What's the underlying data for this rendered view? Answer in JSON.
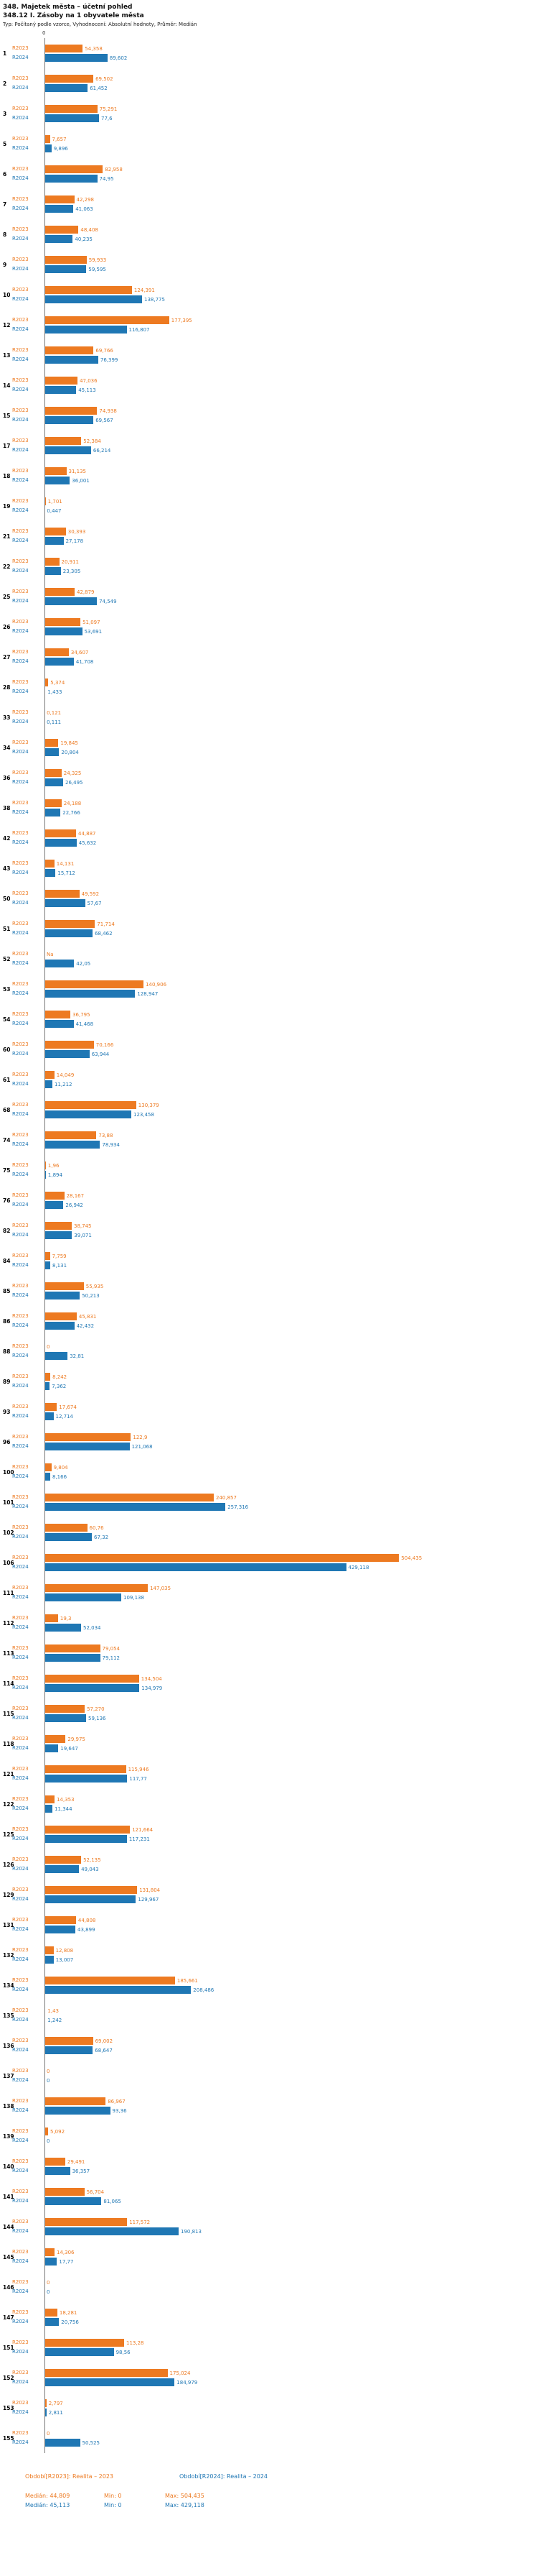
{
  "header": {
    "title": "348. Majetek města – účetní pohled",
    "subtitle": "348.12 I. Zásoby na 1 obyvatele města",
    "meta": "Typ: Počítaný podle vzorce, Vyhodnocení: Absolutní hodnoty, Průměr: Medián"
  },
  "axis": {
    "zero_label": "0"
  },
  "chart_data": {
    "type": "bar",
    "orientation": "horizontal",
    "title": "348.12 I. Zásoby na 1 obyvatele města",
    "xlabel": "",
    "ylabel": "",
    "xlim": [
      0,
      520
    ],
    "grid": false,
    "legend_position": "bottom",
    "series": [
      {
        "name": "R2023",
        "color": "#ed7a21",
        "legend": "Období[R2023]: Realita – 2023",
        "median": "44,809",
        "min": "0",
        "max": "504,435"
      },
      {
        "name": "R2024",
        "color": "#1f77b4",
        "legend": "Období[R2024]: Realita – 2024",
        "median": "45,113",
        "min": "0",
        "max": "429,118"
      }
    ],
    "rows": [
      {
        "id": "1",
        "r2023": "54,358",
        "r2024": "89,602"
      },
      {
        "id": "2",
        "r2023": "69,502",
        "r2024": "61,452"
      },
      {
        "id": "3",
        "r2023": "75,291",
        "r2024": "77,6"
      },
      {
        "id": "5",
        "r2023": "7,657",
        "r2024": "9,896"
      },
      {
        "id": "6",
        "r2023": "82,958",
        "r2024": "74,95"
      },
      {
        "id": "7",
        "r2023": "42,298",
        "r2024": "41,063"
      },
      {
        "id": "8",
        "r2023": "48,408",
        "r2024": "40,235"
      },
      {
        "id": "9",
        "r2023": "59,933",
        "r2024": "59,595"
      },
      {
        "id": "10",
        "r2023": "124,391",
        "r2024": "138,775"
      },
      {
        "id": "12",
        "r2023": "177,395",
        "r2024": "116,807"
      },
      {
        "id": "13",
        "r2023": "69,766",
        "r2024": "76,399"
      },
      {
        "id": "14",
        "r2023": "47,036",
        "r2024": "45,113"
      },
      {
        "id": "15",
        "r2023": "74,938",
        "r2024": "69,567"
      },
      {
        "id": "17",
        "r2023": "52,384",
        "r2024": "66,214"
      },
      {
        "id": "18",
        "r2023": "31,135",
        "r2024": "36,001"
      },
      {
        "id": "19",
        "r2023": "1,701",
        "r2024": "0,447"
      },
      {
        "id": "21",
        "r2023": "30,393",
        "r2024": "27,178"
      },
      {
        "id": "22",
        "r2023": "20,911",
        "r2024": "23,305"
      },
      {
        "id": "25",
        "r2023": "42,879",
        "r2024": "74,549"
      },
      {
        "id": "26",
        "r2023": "51,097",
        "r2024": "53,691"
      },
      {
        "id": "27",
        "r2023": "34,607",
        "r2024": "41,708"
      },
      {
        "id": "28",
        "r2023": "5,374",
        "r2024": "1,433"
      },
      {
        "id": "33",
        "r2023": "0,121",
        "r2024": "0,111"
      },
      {
        "id": "34",
        "r2023": "19,845",
        "r2024": "20,804"
      },
      {
        "id": "36",
        "r2023": "24,325",
        "r2024": "26,495"
      },
      {
        "id": "38",
        "r2023": "24,188",
        "r2024": "22,766"
      },
      {
        "id": "42",
        "r2023": "44,887",
        "r2024": "45,632"
      },
      {
        "id": "43",
        "r2023": "14,131",
        "r2024": "15,712"
      },
      {
        "id": "50",
        "r2023": "49,592",
        "r2024": "57,67"
      },
      {
        "id": "51",
        "r2023": "71,714",
        "r2024": "68,462"
      },
      {
        "id": "52",
        "r2023": "Na",
        "r2024": "42,05"
      },
      {
        "id": "53",
        "r2023": "140,906",
        "r2024": "128,947"
      },
      {
        "id": "54",
        "r2023": "36,795",
        "r2024": "41,468"
      },
      {
        "id": "60",
        "r2023": "70,166",
        "r2024": "63,944"
      },
      {
        "id": "61",
        "r2023": "14,049",
        "r2024": "11,212"
      },
      {
        "id": "68",
        "r2023": "130,379",
        "r2024": "123,458"
      },
      {
        "id": "74",
        "r2023": "73,88",
        "r2024": "78,934"
      },
      {
        "id": "75",
        "r2023": "1,96",
        "r2024": "1,894"
      },
      {
        "id": "76",
        "r2023": "28,167",
        "r2024": "26,942"
      },
      {
        "id": "82",
        "r2023": "38,745",
        "r2024": "39,071"
      },
      {
        "id": "84",
        "r2023": "7,759",
        "r2024": "8,131"
      },
      {
        "id": "85",
        "r2023": "55,935",
        "r2024": "50,213"
      },
      {
        "id": "86",
        "r2023": "45,831",
        "r2024": "42,432"
      },
      {
        "id": "88",
        "r2023": "0",
        "r2024": "32,81"
      },
      {
        "id": "89",
        "r2023": "8,242",
        "r2024": "7,362"
      },
      {
        "id": "93",
        "r2023": "17,674",
        "r2024": "12,714"
      },
      {
        "id": "96",
        "r2023": "122,9",
        "r2024": "121,068"
      },
      {
        "id": "100",
        "r2023": "9,804",
        "r2024": "8,166"
      },
      {
        "id": "101",
        "r2023": "240,857",
        "r2024": "257,316"
      },
      {
        "id": "102",
        "r2023": "60,76",
        "r2024": "67,32"
      },
      {
        "id": "106",
        "r2023": "504,435",
        "r2024": "429,118"
      },
      {
        "id": "111",
        "r2023": "147,035",
        "r2024": "109,138"
      },
      {
        "id": "112",
        "r2023": "19,3",
        "r2024": "52,034"
      },
      {
        "id": "113",
        "r2023": "79,054",
        "r2024": "79,112"
      },
      {
        "id": "114",
        "r2023": "134,504",
        "r2024": "134,979"
      },
      {
        "id": "115",
        "r2023": "57,270",
        "r2024": "59,136"
      },
      {
        "id": "118",
        "r2023": "29,975",
        "r2024": "19,647"
      },
      {
        "id": "121",
        "r2023": "115,946",
        "r2024": "117,77"
      },
      {
        "id": "122",
        "r2023": "14,353",
        "r2024": "11,344"
      },
      {
        "id": "125",
        "r2023": "121,664",
        "r2024": "117,231"
      },
      {
        "id": "126",
        "r2023": "52,135",
        "r2024": "49,043"
      },
      {
        "id": "129",
        "r2023": "131,804",
        "r2024": "129,967"
      },
      {
        "id": "131",
        "r2023": "44,808",
        "r2024": "43,899"
      },
      {
        "id": "132",
        "r2023": "12,808",
        "r2024": "13,007"
      },
      {
        "id": "134",
        "r2023": "185,661",
        "r2024": "208,486"
      },
      {
        "id": "135",
        "r2023": "1,43",
        "r2024": "1,242"
      },
      {
        "id": "136",
        "r2023": "69,002",
        "r2024": "68,647"
      },
      {
        "id": "137",
        "r2023": "0",
        "r2024": "0"
      },
      {
        "id": "138",
        "r2023": "86,967",
        "r2024": "93,36"
      },
      {
        "id": "139",
        "r2023": "5,092",
        "r2024": "0"
      },
      {
        "id": "140",
        "r2023": "29,491",
        "r2024": "36,357"
      },
      {
        "id": "141",
        "r2023": "56,704",
        "r2024": "81,065"
      },
      {
        "id": "144",
        "r2023": "117,572",
        "r2024": "190,813"
      },
      {
        "id": "145",
        "r2023": "14,306",
        "r2024": "17,77"
      },
      {
        "id": "146",
        "r2023": "0",
        "r2024": "0"
      },
      {
        "id": "147",
        "r2023": "18,281",
        "r2024": "20,756"
      },
      {
        "id": "151",
        "r2023": "113,28",
        "r2024": "98,56"
      },
      {
        "id": "152",
        "r2023": "175,024",
        "r2024": "184,979"
      },
      {
        "id": "153",
        "r2023": "2,797",
        "r2024": "2,811"
      },
      {
        "id": "155",
        "r2023": "0",
        "r2024": "50,525"
      }
    ]
  },
  "footer": {
    "legend_left": "Období[R2023]: Realita – 2023",
    "legend_right": "Období[R2024]: Realita – 2024",
    "stats": [
      {
        "median": "Medián: 44,809",
        "min": "Min: 0",
        "max": "Max: 504,435",
        "color": "#ed7a21"
      },
      {
        "median": "Medián: 45,113",
        "min": "Min: 0",
        "max": "Max: 429,118",
        "color": "#1f77b4"
      }
    ]
  }
}
